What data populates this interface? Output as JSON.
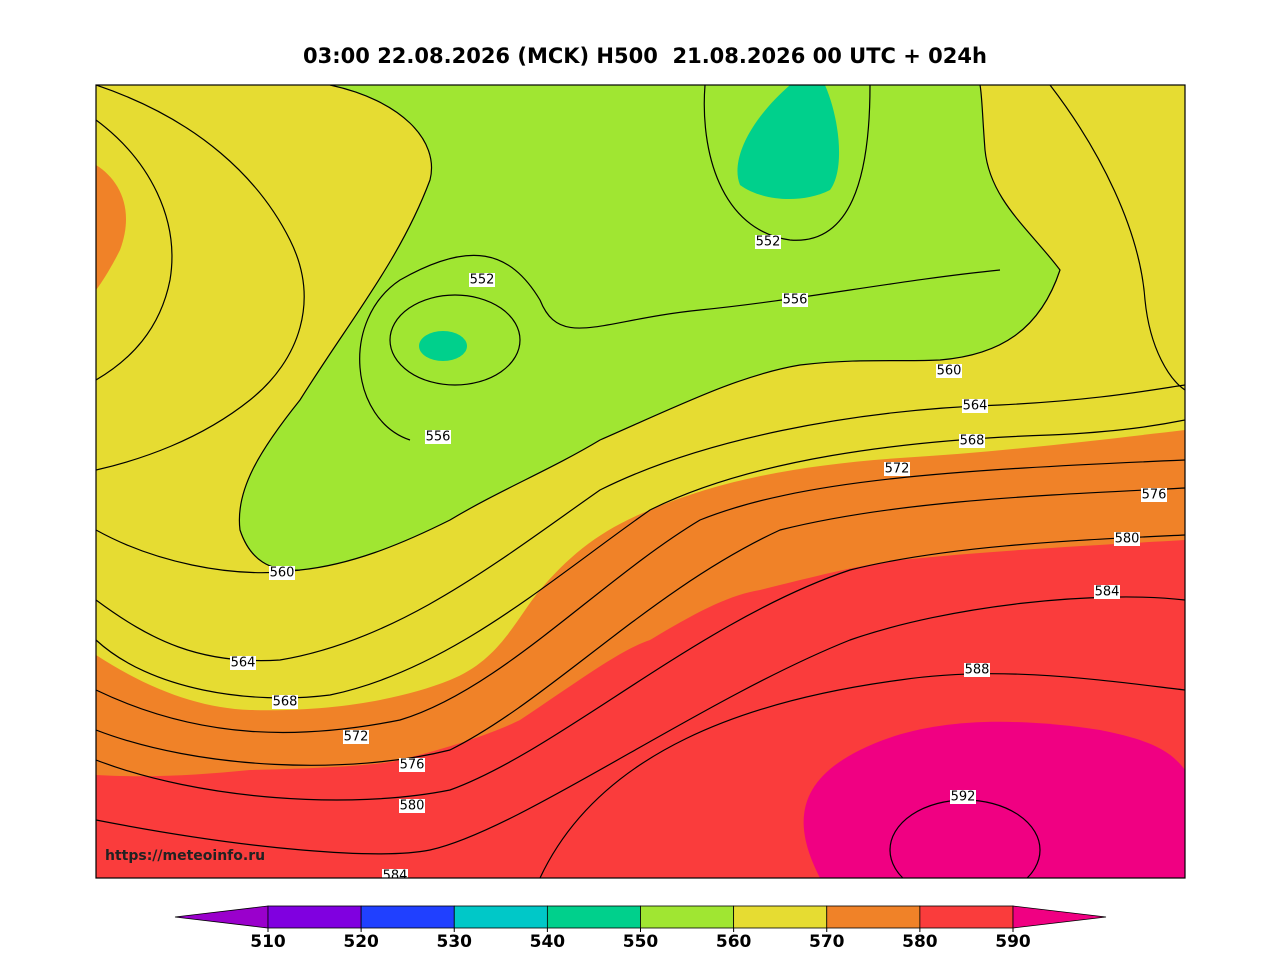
{
  "header": {
    "title": "03:00 22.08.2026 (MCK) H500  21.08.2026 00 UTC + 024h"
  },
  "map": {
    "contour_labels": [
      552,
      552,
      556,
      556,
      560,
      560,
      564,
      564,
      568,
      568,
      572,
      572,
      576,
      576,
      580,
      580,
      584,
      584,
      588,
      592
    ],
    "watermark": "https://meteoinfo.ru"
  },
  "colorbar": {
    "ticks": [
      510,
      520,
      530,
      540,
      550,
      560,
      570,
      580,
      590
    ],
    "colors": [
      "#9a00cc",
      "#8000e0",
      "#2040ff",
      "#00c8c8",
      "#00d08c",
      "#a0e632",
      "#e6dc32",
      "#f08228",
      "#fa3c3c",
      "#f00082"
    ]
  }
}
